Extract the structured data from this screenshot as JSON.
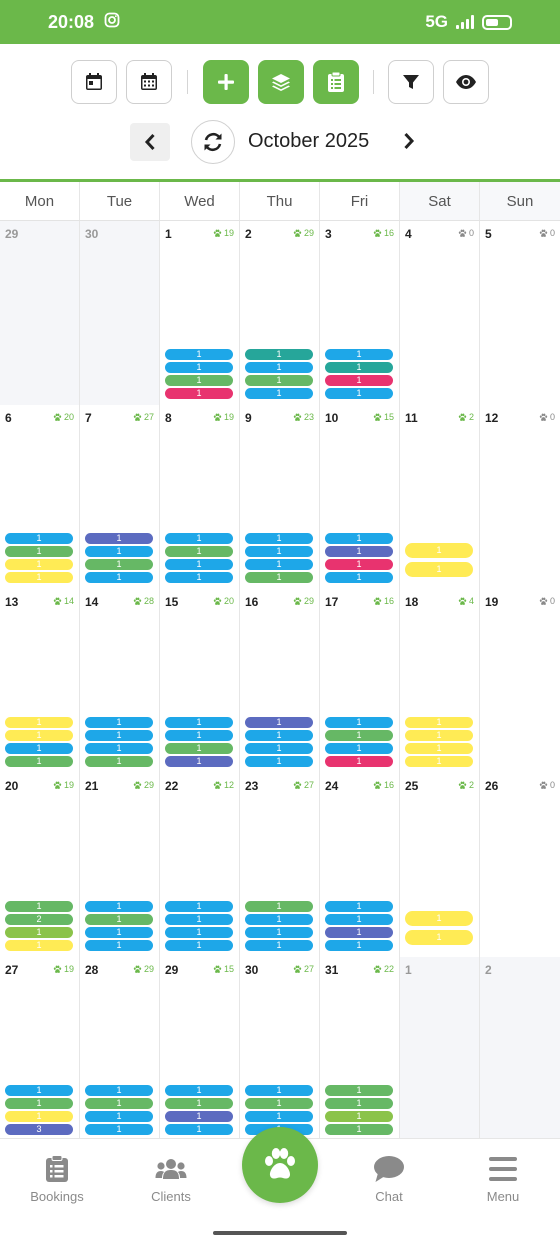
{
  "status_bar": {
    "time": "20:08",
    "network": "5G"
  },
  "toolbar": {
    "buttons": [
      "day-view",
      "month-view",
      "add",
      "layers",
      "clipboard",
      "filter",
      "visibility"
    ]
  },
  "month_nav": {
    "title": "October 2025"
  },
  "colors": {
    "brand_green": "#6bb84a",
    "blue": "#1ea7e8",
    "green": "#66b865",
    "lime": "#8bc34a",
    "teal": "#26a69a",
    "indigo": "#5c6bc0",
    "pink": "#e8336f",
    "yellow": "#ffeb55"
  },
  "calendar": {
    "weekdays": [
      "Mon",
      "Tue",
      "Wed",
      "Thu",
      "Fri",
      "Sat",
      "Sun"
    ],
    "weeks": [
      [
        {
          "day": "29",
          "outside": true
        },
        {
          "day": "30",
          "outside": true
        },
        {
          "day": "1",
          "paws": "19",
          "bars": [
            [
              "blue",
              "1"
            ],
            [
              "blue",
              "1"
            ],
            [
              "green",
              "1"
            ],
            [
              "pink",
              "1"
            ]
          ]
        },
        {
          "day": "2",
          "paws": "29",
          "bars": [
            [
              "teal",
              "1"
            ],
            [
              "blue",
              "1"
            ],
            [
              "green",
              "1"
            ],
            [
              "blue",
              "1"
            ]
          ]
        },
        {
          "day": "3",
          "paws": "16",
          "bars": [
            [
              "blue",
              "1"
            ],
            [
              "teal",
              "1"
            ],
            [
              "pink",
              "1"
            ],
            [
              "blue",
              "1"
            ]
          ]
        },
        {
          "day": "4",
          "paws": "0",
          "bars": []
        },
        {
          "day": "5",
          "paws": "0",
          "bars": []
        }
      ],
      [
        {
          "day": "6",
          "paws": "20",
          "bars": [
            [
              "blue",
              "1"
            ],
            [
              "green",
              "1"
            ],
            [
              "yellow",
              "1"
            ],
            [
              "yellow",
              "1"
            ]
          ]
        },
        {
          "day": "7",
          "paws": "27",
          "bars": [
            [
              "indigo",
              "1"
            ],
            [
              "blue",
              "1"
            ],
            [
              "green",
              "1"
            ],
            [
              "blue",
              "1"
            ]
          ]
        },
        {
          "day": "8",
          "paws": "19",
          "bars": [
            [
              "blue",
              "1"
            ],
            [
              "green",
              "1"
            ],
            [
              "blue",
              "1"
            ],
            [
              "blue",
              "1"
            ]
          ]
        },
        {
          "day": "9",
          "paws": "23",
          "bars": [
            [
              "blue",
              "1"
            ],
            [
              "blue",
              "1"
            ],
            [
              "blue",
              "1"
            ],
            [
              "green",
              "1"
            ]
          ]
        },
        {
          "day": "10",
          "paws": "15",
          "bars": [
            [
              "blue",
              "1"
            ],
            [
              "indigo",
              "1"
            ],
            [
              "pink",
              "1"
            ],
            [
              "blue",
              "1"
            ]
          ]
        },
        {
          "day": "11",
          "paws": "2",
          "tall": true,
          "bars": [
            [
              "yellow",
              "1"
            ],
            [
              "yellow",
              "1"
            ]
          ]
        },
        {
          "day": "12",
          "paws": "0",
          "bars": []
        }
      ],
      [
        {
          "day": "13",
          "paws": "14",
          "bars": [
            [
              "yellow",
              "1"
            ],
            [
              "yellow",
              "1"
            ],
            [
              "blue",
              "1"
            ],
            [
              "green",
              "1"
            ]
          ]
        },
        {
          "day": "14",
          "paws": "28",
          "bars": [
            [
              "blue",
              "1"
            ],
            [
              "blue",
              "1"
            ],
            [
              "blue",
              "1"
            ],
            [
              "green",
              "1"
            ]
          ]
        },
        {
          "day": "15",
          "paws": "20",
          "bars": [
            [
              "blue",
              "1"
            ],
            [
              "blue",
              "1"
            ],
            [
              "green",
              "1"
            ],
            [
              "indigo",
              "1"
            ]
          ]
        },
        {
          "day": "16",
          "paws": "29",
          "bars": [
            [
              "indigo",
              "1"
            ],
            [
              "blue",
              "1"
            ],
            [
              "blue",
              "1"
            ],
            [
              "blue",
              "1"
            ]
          ]
        },
        {
          "day": "17",
          "paws": "16",
          "bars": [
            [
              "blue",
              "1"
            ],
            [
              "green",
              "1"
            ],
            [
              "blue",
              "1"
            ],
            [
              "pink",
              "1"
            ]
          ]
        },
        {
          "day": "18",
          "paws": "4",
          "bars": [
            [
              "yellow",
              "1"
            ],
            [
              "yellow",
              "1"
            ],
            [
              "yellow",
              "1"
            ],
            [
              "yellow",
              "1"
            ]
          ]
        },
        {
          "day": "19",
          "paws": "0",
          "bars": []
        }
      ],
      [
        {
          "day": "20",
          "paws": "19",
          "bars": [
            [
              "green",
              "1"
            ],
            [
              "green",
              "2"
            ],
            [
              "lime",
              "1"
            ],
            [
              "yellow",
              "1"
            ]
          ]
        },
        {
          "day": "21",
          "paws": "29",
          "bars": [
            [
              "blue",
              "1"
            ],
            [
              "green",
              "1"
            ],
            [
              "blue",
              "1"
            ],
            [
              "blue",
              "1"
            ]
          ]
        },
        {
          "day": "22",
          "paws": "12",
          "bars": [
            [
              "blue",
              "1"
            ],
            [
              "blue",
              "1"
            ],
            [
              "blue",
              "1"
            ],
            [
              "blue",
              "1"
            ]
          ]
        },
        {
          "day": "23",
          "paws": "27",
          "bars": [
            [
              "green",
              "1"
            ],
            [
              "blue",
              "1"
            ],
            [
              "blue",
              "1"
            ],
            [
              "blue",
              "1"
            ]
          ]
        },
        {
          "day": "24",
          "paws": "16",
          "bars": [
            [
              "blue",
              "1"
            ],
            [
              "blue",
              "1"
            ],
            [
              "indigo",
              "1"
            ],
            [
              "blue",
              "1"
            ]
          ]
        },
        {
          "day": "25",
          "paws": "2",
          "tall": true,
          "bars": [
            [
              "yellow",
              "1"
            ],
            [
              "yellow",
              "1"
            ]
          ]
        },
        {
          "day": "26",
          "paws": "0",
          "bars": []
        }
      ],
      [
        {
          "day": "27",
          "paws": "19",
          "bars": [
            [
              "blue",
              "1"
            ],
            [
              "green",
              "1"
            ],
            [
              "yellow",
              "1"
            ],
            [
              "indigo",
              "3"
            ]
          ]
        },
        {
          "day": "28",
          "paws": "29",
          "bars": [
            [
              "blue",
              "1"
            ],
            [
              "green",
              "1"
            ],
            [
              "blue",
              "1"
            ],
            [
              "blue",
              "1"
            ]
          ]
        },
        {
          "day": "29",
          "paws": "15",
          "bars": [
            [
              "blue",
              "1"
            ],
            [
              "green",
              "1"
            ],
            [
              "indigo",
              "1"
            ],
            [
              "blue",
              "1"
            ]
          ]
        },
        {
          "day": "30",
          "paws": "27",
          "bars": [
            [
              "blue",
              "1"
            ],
            [
              "green",
              "1"
            ],
            [
              "blue",
              "1"
            ],
            [
              "blue",
              "1"
            ]
          ]
        },
        {
          "day": "31",
          "paws": "22",
          "bars": [
            [
              "green",
              "1"
            ],
            [
              "green",
              "1"
            ],
            [
              "lime",
              "1"
            ],
            [
              "green",
              "1"
            ]
          ]
        },
        {
          "day": "1",
          "outside": true
        },
        {
          "day": "2",
          "outside": true
        }
      ]
    ]
  },
  "bottom_nav": {
    "bookings": "Bookings",
    "clients": "Clients",
    "chat": "Chat",
    "menu": "Menu"
  }
}
